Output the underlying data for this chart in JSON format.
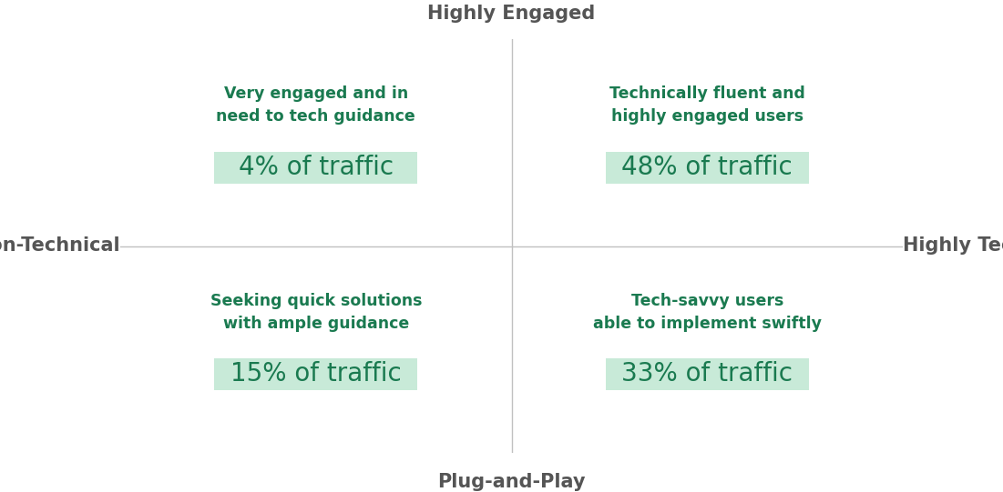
{
  "background_color": "#ffffff",
  "axis_color": "#c0c0c0",
  "axis_label_color": "#555555",
  "green_dark": "#1a7a50",
  "green_light_bg": "#c8ead8",
  "quadrants": [
    {
      "title": "Very engaged and in\nneed to tech guidance",
      "traffic": "4% of traffic"
    },
    {
      "title": "Technically fluent and\nhighly engaged users",
      "traffic": "48% of traffic"
    },
    {
      "title": "Seeking quick solutions\nwith ample guidance",
      "traffic": "15% of traffic"
    },
    {
      "title": "Tech-savvy users\nable to implement swiftly",
      "traffic": "33% of traffic"
    }
  ],
  "axis_labels": {
    "top": "Highly Engaged",
    "bottom": "Plug-and-Play",
    "left": "Non-Technical",
    "right": "Highly Technical"
  },
  "title_fontsize": 12.5,
  "traffic_fontsize": 20,
  "axis_label_fontsize": 15
}
